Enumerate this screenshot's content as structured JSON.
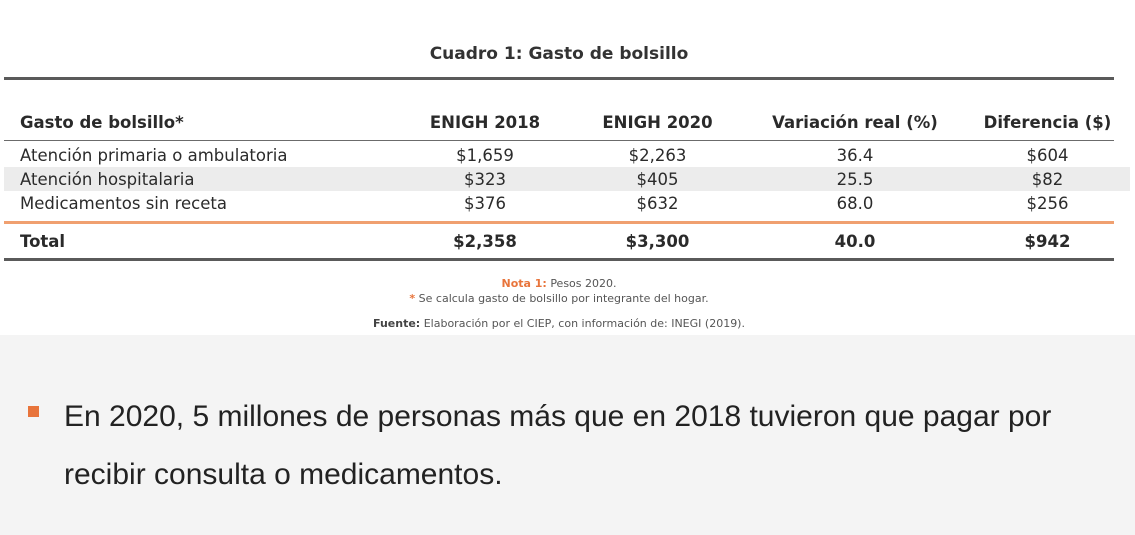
{
  "table": {
    "title": "Cuadro 1: Gasto de bolsillo",
    "columns": [
      "Gasto de bolsillo*",
      "ENIGH 2018",
      "ENIGH 2020",
      "Variación real (%)",
      "Diferencia ($)"
    ],
    "rows": [
      [
        "Atención primaria o ambulatoria",
        "$1,659",
        "$2,263",
        "36.4",
        "$604"
      ],
      [
        "Atención hospitalaria",
        "$323",
        "$405",
        "25.5",
        "$82"
      ],
      [
        "Medicamentos sin receta",
        "$376",
        "$632",
        "68.0",
        "$256"
      ]
    ],
    "total": [
      "Total",
      "$2,358",
      "$3,300",
      "40.0",
      "$942"
    ]
  },
  "notes": {
    "note1_label": "Nota 1:",
    "note1_text": "Pesos 2020.",
    "star_mark": "*",
    "star_text": "Se calcula gasto de bolsillo por integrante del hogar.",
    "source_label": "Fuente:",
    "source_text": "Elaboración por el CIEP, con información de: INEGI (2019)."
  },
  "bullet": {
    "text": "En 2020, 5 millones de personas más que en 2018 tuvieron que pagar por recibir consulta o medicamentos."
  },
  "colors": {
    "accent": "#e8743b",
    "rule_dark": "#5a5a5a",
    "rule_orange": "#f0a070",
    "row_shade": "#ececec"
  }
}
